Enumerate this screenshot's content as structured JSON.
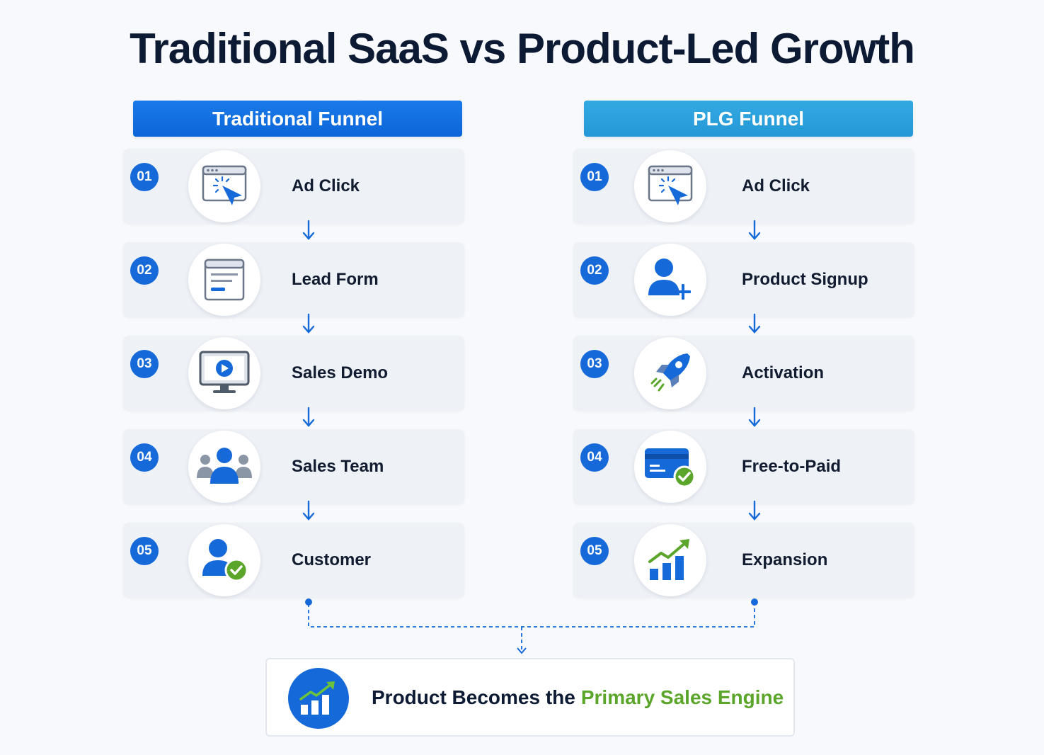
{
  "title": "Traditional SaaS vs Product-Led Growth",
  "traditional": {
    "header": "Traditional Funnel",
    "steps": [
      {
        "num": "01",
        "label": "Ad Click",
        "icon": "browser-click-icon"
      },
      {
        "num": "02",
        "label": "Lead Form",
        "icon": "form-document-icon"
      },
      {
        "num": "03",
        "label": "Sales Demo",
        "icon": "monitor-play-icon"
      },
      {
        "num": "04",
        "label": "Sales Team",
        "icon": "group-users-icon"
      },
      {
        "num": "05",
        "label": "Customer",
        "icon": "user-check-icon"
      }
    ]
  },
  "plg": {
    "header": "PLG Funnel",
    "steps": [
      {
        "num": "01",
        "label": "Ad Click",
        "icon": "browser-click-icon"
      },
      {
        "num": "02",
        "label": "Product Signup",
        "icon": "user-add-icon"
      },
      {
        "num": "03",
        "label": "Activation",
        "icon": "rocket-icon"
      },
      {
        "num": "04",
        "label": "Free-to-Paid",
        "icon": "credit-card-check-icon"
      },
      {
        "num": "05",
        "label": "Expansion",
        "icon": "growth-chart-icon"
      }
    ]
  },
  "result": {
    "text_main": "Product Becomes the",
    "text_highlight": "Primary Sales Engine",
    "icon": "growth-chart-icon"
  },
  "colors": {
    "primary_blue": "#1569d8",
    "light_blue": "#2ea3df",
    "green": "#5aa52a"
  }
}
